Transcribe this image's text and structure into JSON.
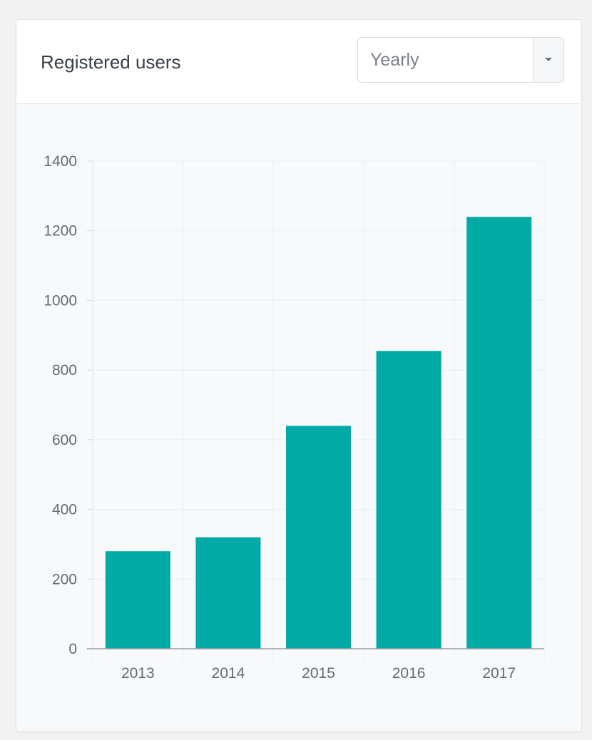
{
  "card": {
    "title": "Registered users",
    "period_select": {
      "value": "Yearly"
    }
  },
  "chart_data": {
    "type": "bar",
    "title": "",
    "xlabel": "",
    "ylabel": "",
    "categories": [
      "2013",
      "2014",
      "2015",
      "2016",
      "2017"
    ],
    "values": [
      280,
      320,
      640,
      855,
      1240
    ],
    "ylim": [
      0,
      1400
    ],
    "yticks": [
      0,
      200,
      400,
      600,
      800,
      1000,
      1200,
      1400
    ],
    "grid": true,
    "legend": "none",
    "bar_color": "#00aba5"
  }
}
